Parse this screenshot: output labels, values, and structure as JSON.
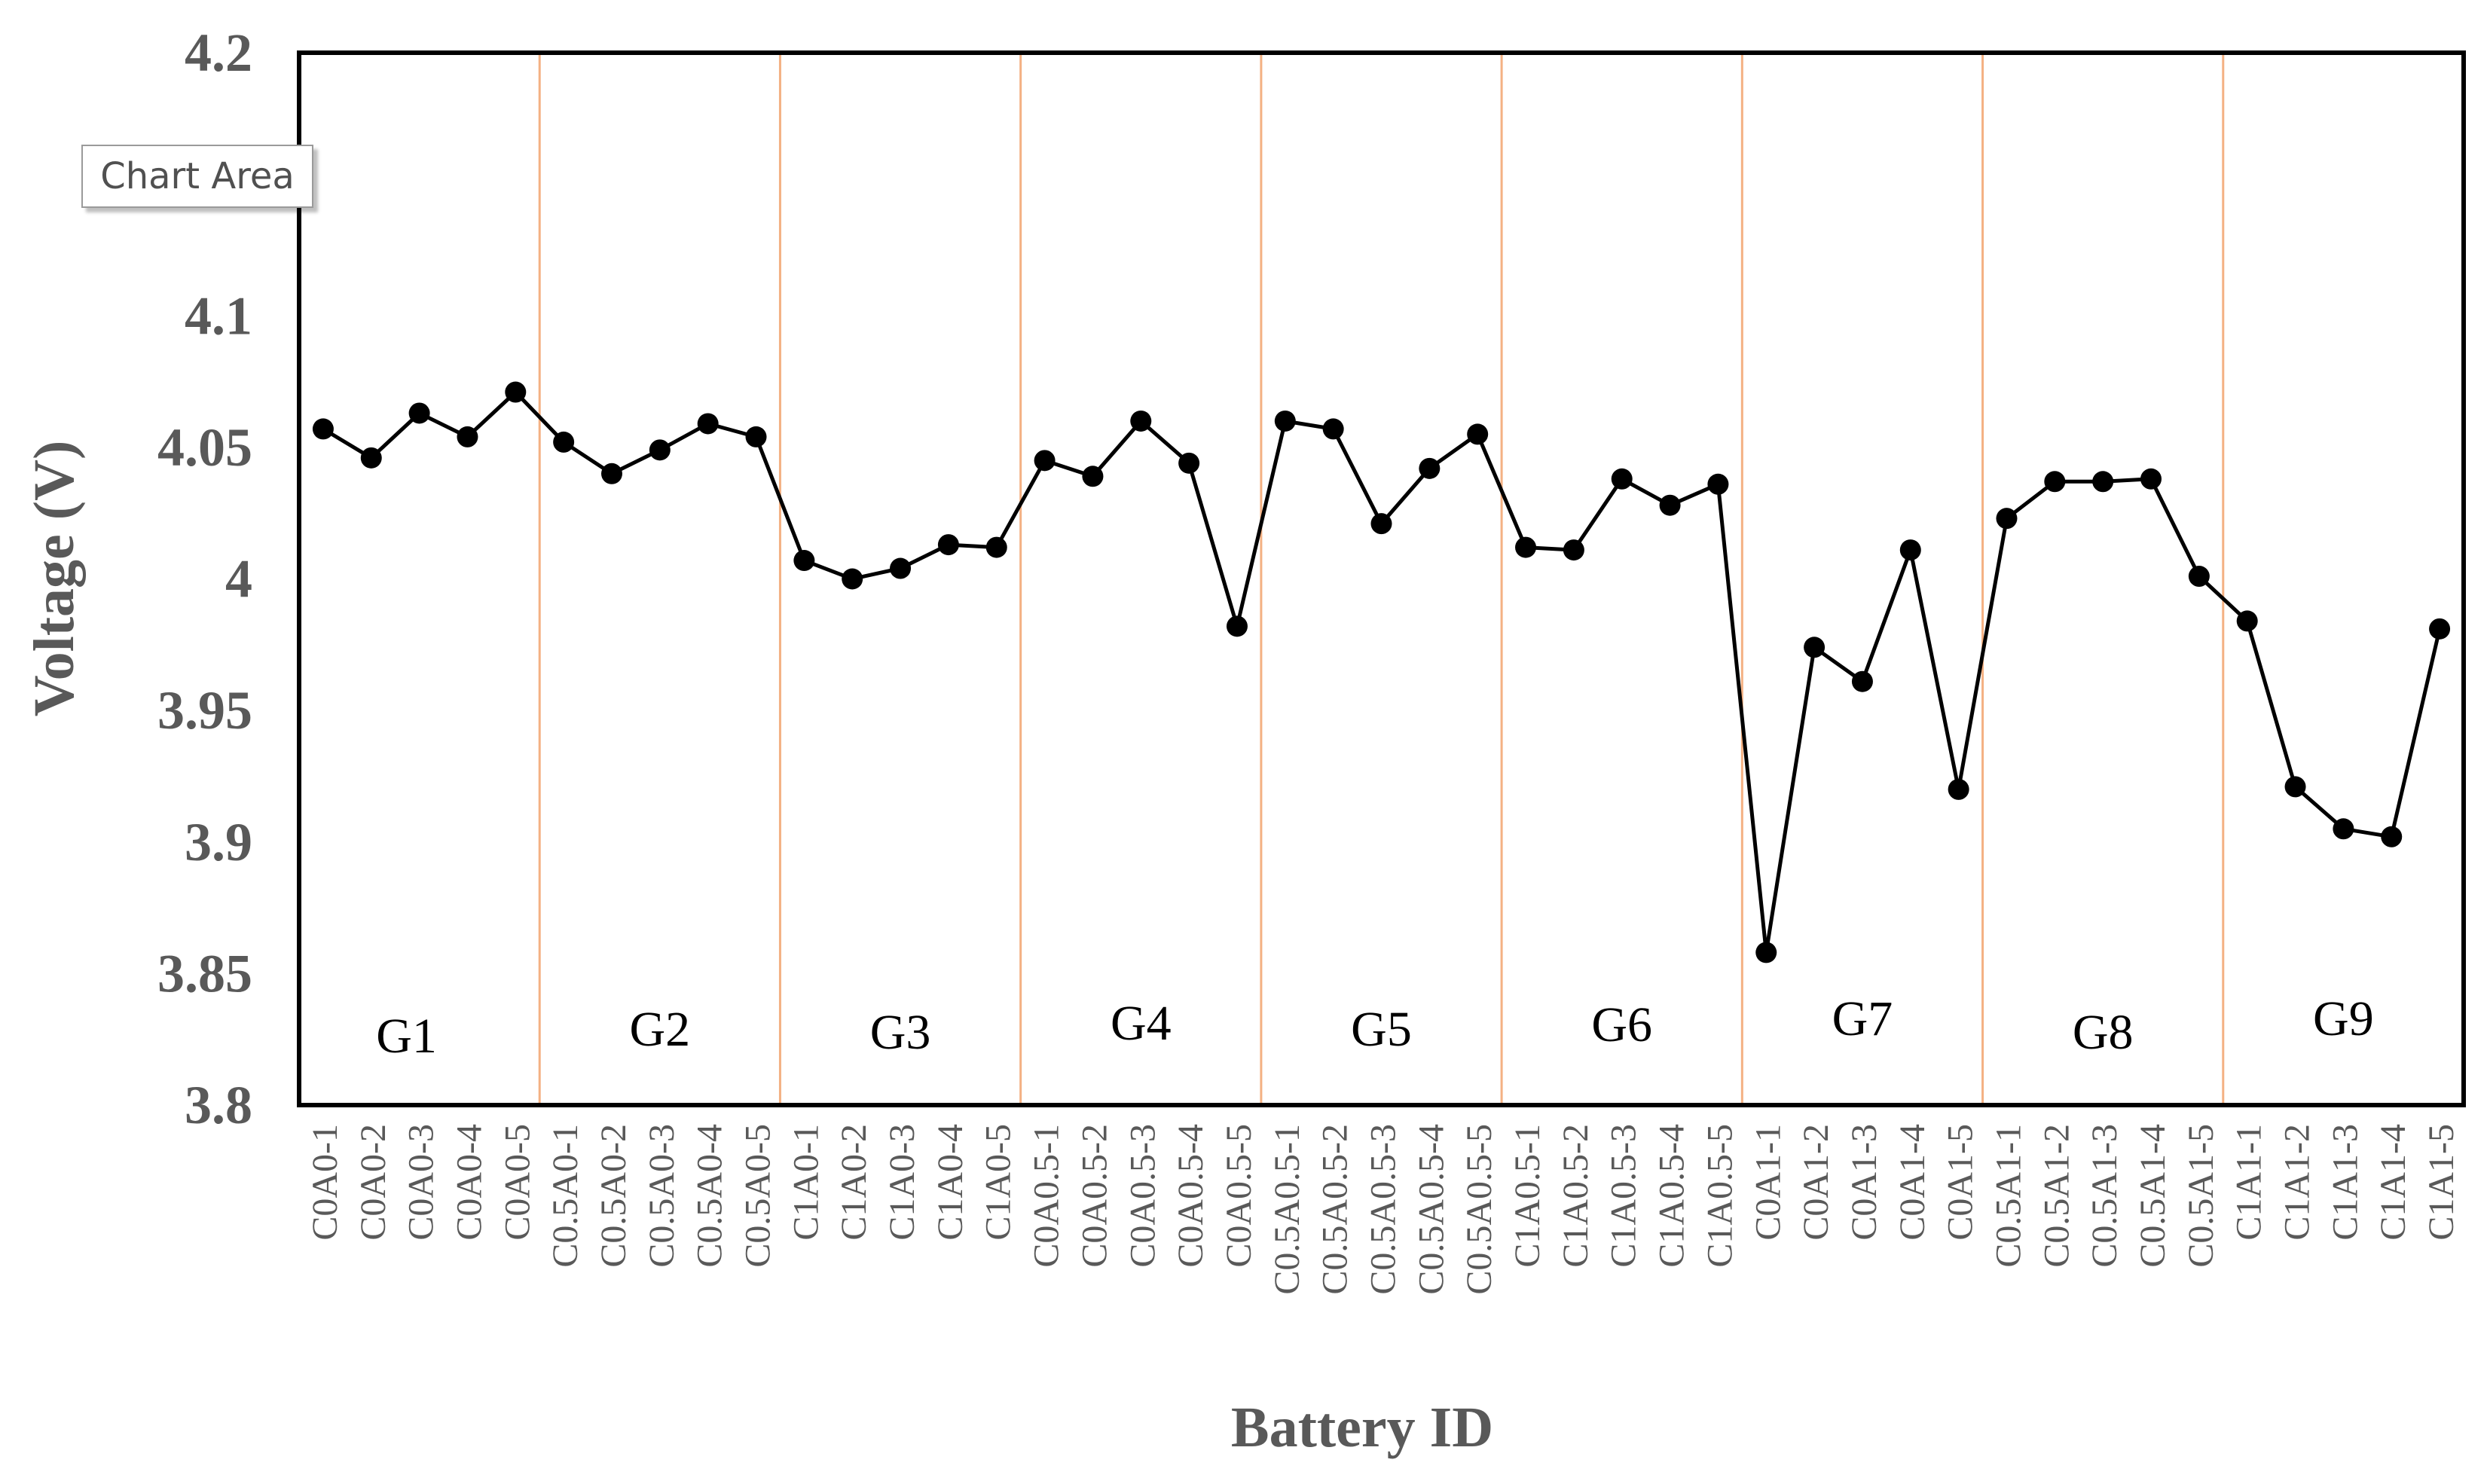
{
  "tooltip": "Chart Area",
  "chart_data": {
    "type": "line",
    "xlabel": "Battery ID",
    "ylabel": "Voltage (V)",
    "ylim": [
      3.8,
      4.2
    ],
    "yticks": [
      "3.8",
      "3.85",
      "3.9",
      "3.95",
      "4",
      "4.05",
      "4.1",
      "4.2"
    ],
    "grid": false,
    "group_labels": [
      "G1",
      "G2",
      "G3",
      "G4",
      "G5",
      "G6",
      "G7",
      "G8",
      "G9"
    ],
    "categories": [
      "C0A0-1",
      "C0A0-2",
      "C0A0-3",
      "C0A0-4",
      "C0A0-5",
      "C0.5A0-1",
      "C0.5A0-2",
      "C0.5A0-3",
      "C0.5A0-4",
      "C0.5A0-5",
      "C1A0-1",
      "C1A0-2",
      "C1A0-3",
      "C1A0-4",
      "C1A0-5",
      "C0A0.5-1",
      "C0A0.5-2",
      "C0A0.5-3",
      "C0A0.5-4",
      "C0A0.5-5",
      "C0.5A0.5-1",
      "C0.5A0.5-2",
      "C0.5A0.5-3",
      "C0.5A0.5-4",
      "C0.5A0.5-5",
      "C1A0.5-1",
      "C1A0.5-2",
      "C1A0.5-3",
      "C1A0.5-4",
      "C1A0.5-5",
      "C0A1-1",
      "C0A1-2",
      "C0A1-3",
      "C0A1-4",
      "C0A1-5",
      "C0.5A1-1",
      "C0.5A1-2",
      "C0.5A1-3",
      "C0.5A1-4",
      "C0.5A1-5",
      "C1A1-1",
      "C1A1-2",
      "C1A1-3",
      "C1A1-4",
      "C1A1-5"
    ],
    "values": [
      4.057,
      4.046,
      4.063,
      4.054,
      4.071,
      4.052,
      4.04,
      4.049,
      4.059,
      4.054,
      4.007,
      4.0,
      4.004,
      4.013,
      4.012,
      4.045,
      4.039,
      4.06,
      4.044,
      3.982,
      4.06,
      4.057,
      4.021,
      4.042,
      4.055,
      4.012,
      4.011,
      4.038,
      4.028,
      4.036,
      3.858,
      3.974,
      3.961,
      4.011,
      3.92,
      4.023,
      4.037,
      4.037,
      4.038,
      4.001,
      3.984,
      3.921,
      3.905,
      3.902,
      3.981
    ],
    "colors": {
      "line": "#000000",
      "marker": "#000000",
      "separator": "#f4b183",
      "axis_text": "#595959"
    }
  }
}
